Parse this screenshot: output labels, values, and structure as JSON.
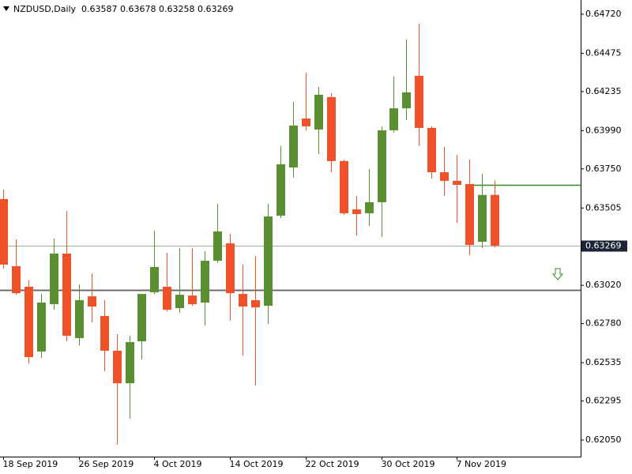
{
  "chart_data": {
    "type": "candlestick",
    "title": "NZDUSD,Daily",
    "categories": [
      "18 Sep 2019",
      null,
      null,
      null,
      null,
      null,
      "26 Sep 2019",
      null,
      null,
      null,
      null,
      null,
      "4 Oct 2019",
      null,
      null,
      null,
      null,
      null,
      "14 Oct 2019",
      null,
      null,
      null,
      null,
      null,
      "22 Oct 2019",
      null,
      null,
      null,
      null,
      null,
      "30 Oct 2019",
      null,
      null,
      null,
      null,
      null,
      "7 Nov 2019",
      null,
      null,
      null
    ],
    "open": [
      0.63561,
      0.6314,
      0.63011,
      0.62605,
      0.62902,
      0.63219,
      0.62689,
      0.62951,
      0.62828,
      0.6261,
      0.62406,
      0.62669,
      0.62976,
      0.63011,
      0.62877,
      0.62956,
      0.62912,
      0.63174,
      0.63283,
      0.62966,
      0.62927,
      0.62892,
      0.63457,
      0.63759,
      0.64066,
      0.63997,
      0.642,
      0.63799,
      0.63496,
      0.63472,
      0.63541,
      0.63992,
      0.6413,
      0.64334,
      0.64007,
      0.63729,
      0.63675,
      0.63655,
      0.63293,
      0.63587
    ],
    "high": [
      0.6362,
      0.63308,
      0.63051,
      0.62966,
      0.63313,
      0.63486,
      0.63026,
      0.63095,
      0.62927,
      0.62714,
      0.62704,
      0.62966,
      0.63363,
      0.63224,
      0.63254,
      0.63254,
      0.63234,
      0.63531,
      0.63343,
      0.6315,
      0.63204,
      0.63531,
      0.63893,
      0.6417,
      0.64353,
      0.64264,
      0.64225,
      0.63809,
      0.63581,
      0.63749,
      0.64017,
      0.64329,
      0.64562,
      0.64661,
      0.64017,
      0.63888,
      0.63838,
      0.63809,
      0.63719,
      0.63678
    ],
    "low": [
      0.63125,
      0.62961,
      0.6253,
      0.62565,
      0.62867,
      0.62669,
      0.62644,
      0.62788,
      0.62481,
      0.6202,
      0.62184,
      0.62555,
      0.62966,
      0.62857,
      0.62847,
      0.62892,
      0.62768,
      0.6316,
      0.62798,
      0.6258,
      0.62392,
      0.62778,
      0.63442,
      0.63695,
      0.63992,
      0.63843,
      0.63729,
      0.63462,
      0.63333,
      0.63392,
      0.63323,
      0.63977,
      0.64056,
      0.63893,
      0.6369,
      0.63581,
      0.63412,
      0.63209,
      0.63254,
      0.63258
    ],
    "close": [
      0.6315,
      0.62971,
      0.6257,
      0.62912,
      0.63219,
      0.62704,
      0.62927,
      0.62887,
      0.6261,
      0.62406,
      0.62664,
      0.62966,
      0.63135,
      0.62867,
      0.62961,
      0.62902,
      0.63174,
      0.63358,
      0.62971,
      0.62887,
      0.62882,
      0.63452,
      0.63779,
      0.64022,
      0.64017,
      0.64215,
      0.63799,
      0.63472,
      0.63467,
      0.63541,
      0.63992,
      0.6413,
      0.6423,
      0.64007,
      0.63729,
      0.63675,
      0.6365,
      0.63273,
      0.63587,
      0.63269
    ],
    "up_color": "#5a8f32",
    "down_color": "#ef5128",
    "ylim": [
      0.61946,
      0.64809
    ],
    "yticks": [
      {
        "value": 0.6472,
        "label": "0.64720"
      },
      0.64475,
      0.64235,
      {
        "value": 0.6399,
        "label": "0.63990"
      },
      {
        "value": 0.6375,
        "label": "0.63750"
      },
      0.63505,
      {
        "value": 0.6302,
        "label": "0.63020"
      },
      {
        "value": 0.6278,
        "label": "0.62780"
      },
      0.62535,
      0.62295,
      {
        "value": 0.6205,
        "label": "0.62050"
      }
    ],
    "hlines": [
      {
        "value": 0.6365,
        "color": "#3a8a24"
      },
      {
        "value": 0.62991,
        "color": "#6b6b6b"
      }
    ]
  }
}
